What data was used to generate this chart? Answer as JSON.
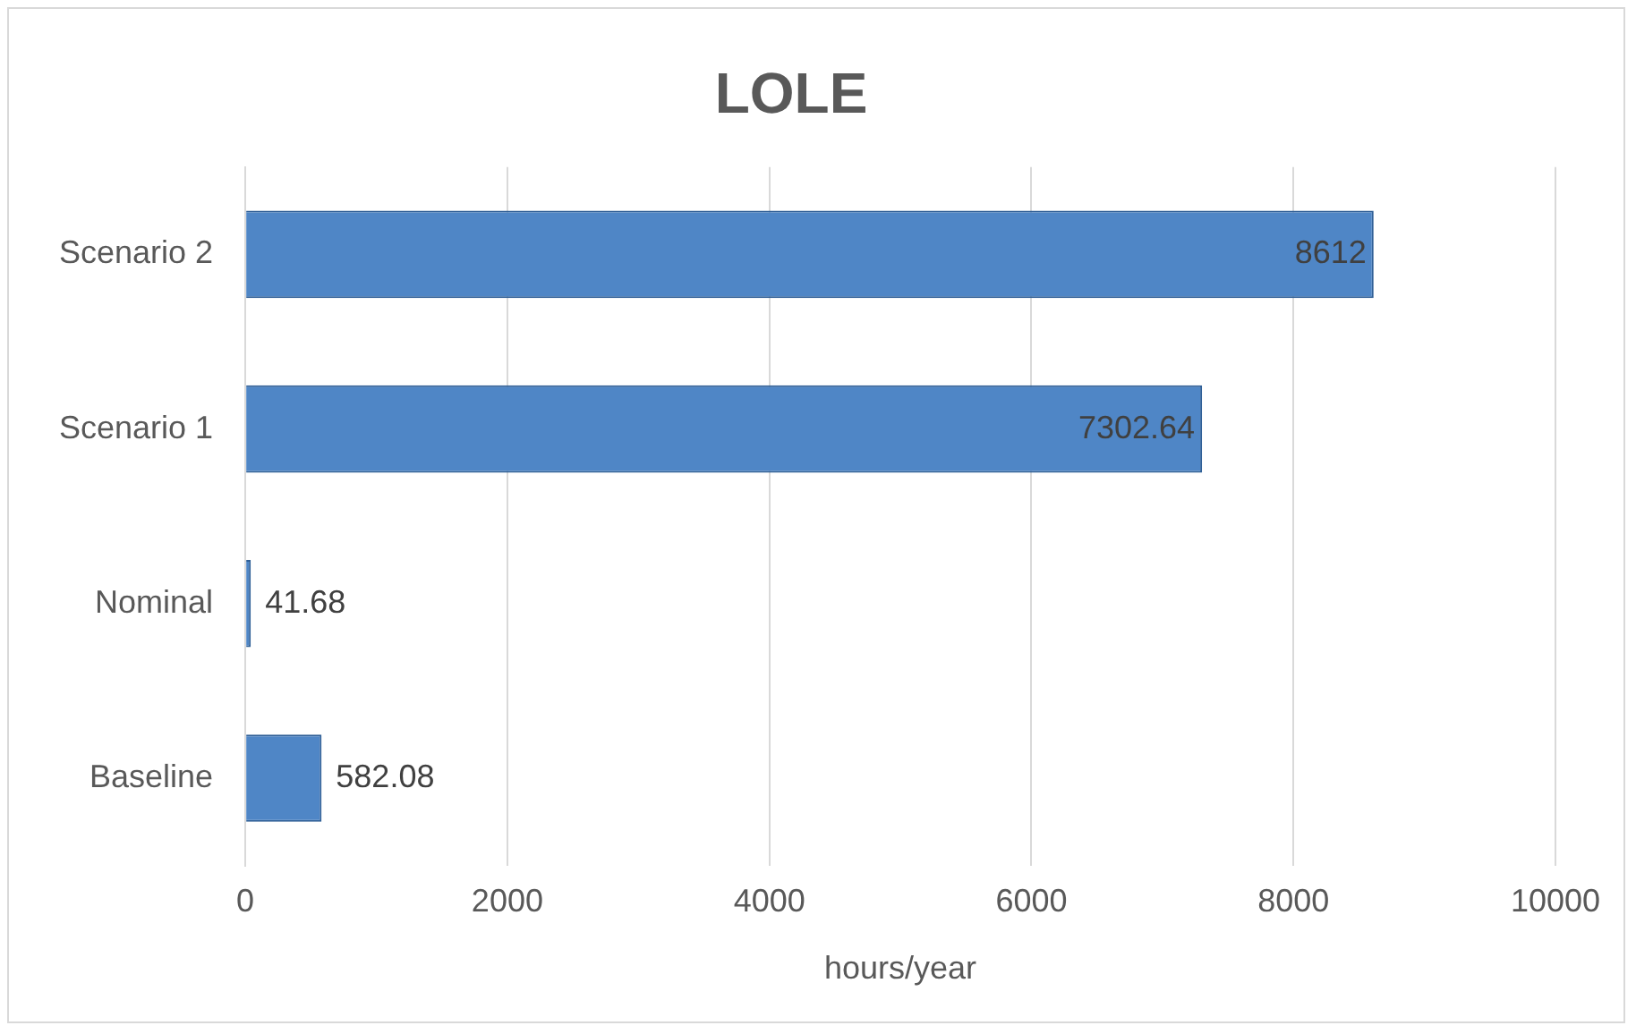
{
  "chart_data": {
    "type": "bar",
    "title": "LOLE",
    "xlabel": "hours/year",
    "orientation": "horizontal",
    "categories": [
      "Scenario 2",
      "Scenario 1",
      "Nominal",
      "Baseline"
    ],
    "values": [
      8612,
      7302.64,
      41.68,
      582.08
    ],
    "color": "#4f86c6",
    "xlim": [
      0,
      10000
    ],
    "xticks": [
      0,
      2000,
      4000,
      6000,
      8000,
      10000
    ],
    "grid": "x",
    "data_labels": true
  }
}
